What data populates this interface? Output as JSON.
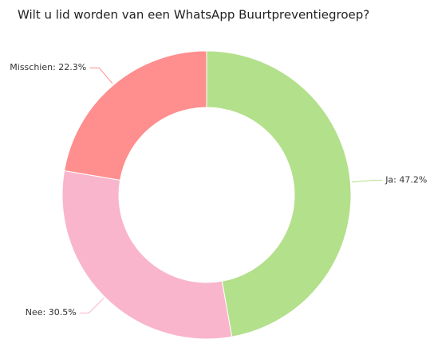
{
  "chart_data": {
    "type": "donut",
    "title": "Wilt u lid worden van een WhatsApp Buurtpreventiegroep?",
    "values": [
      47.2,
      30.5,
      22.3
    ],
    "value_labels": [
      "Ja: 47.2%",
      "Nee: 30.5%",
      "Misschien: 22.3%"
    ],
    "colors": [
      "#b3e08b",
      "#f9b5cb",
      "#ff8e8e"
    ]
  }
}
